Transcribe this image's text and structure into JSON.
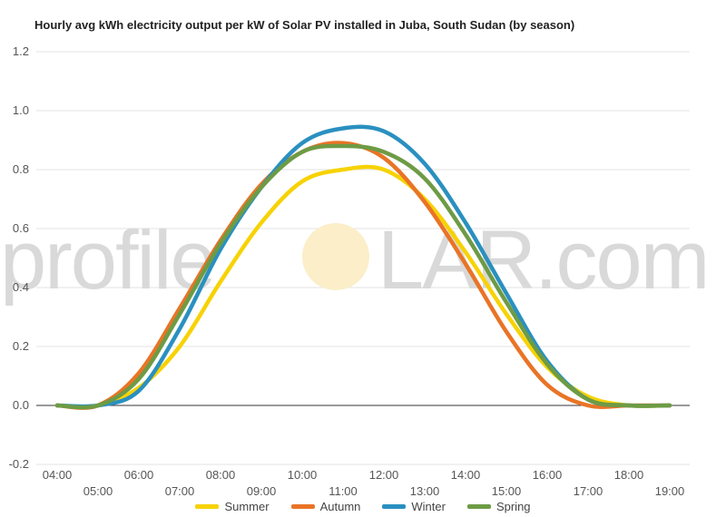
{
  "chart_data": {
    "type": "line",
    "title": "Hourly avg kWh electricity output per kW of Solar PV installed in Juba, South Sudan (by season)",
    "xlabel": "",
    "ylabel": "",
    "ylim": [
      -0.2,
      1.2
    ],
    "yticks": [
      "-0.2",
      "0.0",
      "0.2",
      "0.4",
      "0.6",
      "0.8",
      "1.0",
      "1.2"
    ],
    "x": [
      "04:00",
      "05:00",
      "06:00",
      "07:00",
      "08:00",
      "09:00",
      "10:00",
      "11:00",
      "12:00",
      "13:00",
      "14:00",
      "15:00",
      "16:00",
      "17:00",
      "18:00",
      "19:00"
    ],
    "grid": true,
    "legend_position": "bottom",
    "series": [
      {
        "name": "Summer",
        "color": "#f7d204",
        "values": [
          0.0,
          0.0,
          0.06,
          0.2,
          0.42,
          0.62,
          0.76,
          0.8,
          0.8,
          0.7,
          0.52,
          0.31,
          0.13,
          0.03,
          0.0,
          0.0
        ]
      },
      {
        "name": "Autumn",
        "color": "#e97426",
        "values": [
          0.0,
          0.0,
          0.11,
          0.33,
          0.56,
          0.75,
          0.86,
          0.89,
          0.84,
          0.69,
          0.48,
          0.25,
          0.07,
          0.0,
          0.0,
          0.0
        ]
      },
      {
        "name": "Winter",
        "color": "#2a90c0",
        "values": [
          0.0,
          0.0,
          0.05,
          0.26,
          0.53,
          0.74,
          0.89,
          0.94,
          0.93,
          0.82,
          0.62,
          0.38,
          0.15,
          0.02,
          0.0,
          0.0
        ]
      },
      {
        "name": "Spring",
        "color": "#6d9b45",
        "values": [
          0.0,
          0.0,
          0.09,
          0.31,
          0.55,
          0.74,
          0.86,
          0.88,
          0.86,
          0.77,
          0.58,
          0.35,
          0.14,
          0.02,
          0.0,
          0.0
        ]
      }
    ]
  },
  "watermark": {
    "prefix": "profile",
    "suffix": "LAR.com",
    "sun_color": "#fbeec8"
  }
}
